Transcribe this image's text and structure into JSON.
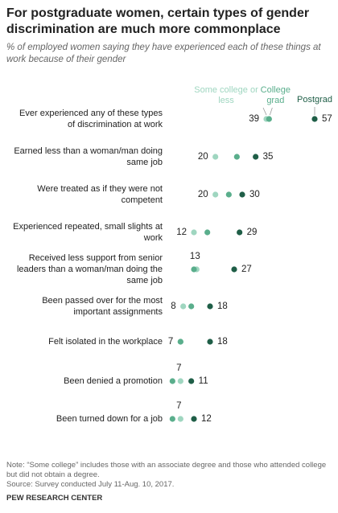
{
  "chart_data": {
    "type": "dot",
    "title": "For postgraduate  women, certain types of gender discrimination are much more commonplace",
    "subtitle": "% of employed women saying they have experienced each of these things at work because of their gender",
    "categories": [
      "Ever experienced any of these types of discrimination at work",
      "Earned less than a woman/man doing same job",
      "Were treated as if they were not competent",
      "Experienced repeated, small slights at work",
      "Received less support from senior leaders than a woman/man doing the same job",
      "Been passed over for the most important assignments",
      "Felt isolated in the workplace",
      "Been denied a promotion",
      "Been turned down for a job"
    ],
    "series": [
      {
        "name": "Some college or less",
        "color": "#9fd6c0",
        "values": [
          39,
          20,
          20,
          12,
          13,
          8,
          7,
          7,
          7
        ],
        "value_labels": [
          "39",
          "20",
          "20",
          "12",
          "13",
          "8",
          "7",
          "7",
          "7"
        ]
      },
      {
        "name": "College grad",
        "color": "#5aae8c",
        "values": [
          40,
          28,
          25,
          17,
          12,
          11,
          7,
          4,
          4
        ]
      },
      {
        "name": "Postgrad",
        "color": "#1f5e47",
        "values": [
          57,
          35,
          30,
          29,
          27,
          18,
          18,
          11,
          12
        ],
        "value_labels": [
          "57",
          "35",
          "30",
          "29",
          "27",
          "18",
          "18",
          "11",
          "12"
        ]
      }
    ],
    "xlim": [
      0,
      60
    ],
    "note": "Note: “Some college” includes those with an associate degree and those who attended college but did not obtain a degree.",
    "source": "Source: Survey conducted July 11-Aug. 10, 2017.",
    "credit": "PEW RESEARCH CENTER"
  }
}
